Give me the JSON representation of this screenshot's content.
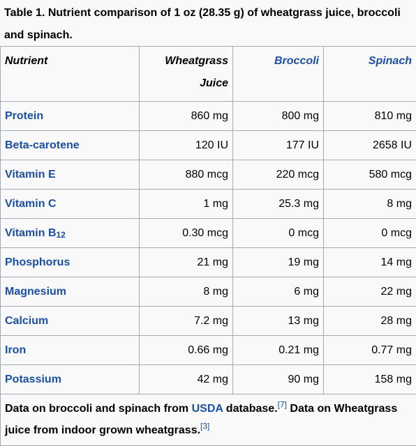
{
  "caption": "Table 1. Nutrient comparison of 1 oz (28.35 g) of wheatgrass juice, broccoli and spinach.",
  "headers": {
    "nutrient": "Nutrient",
    "wheatgrass": "Wheatgrass Juice",
    "broccoli": "Broccoli",
    "spinach": "Spinach"
  },
  "rows": [
    {
      "name": "Protein",
      "sub": "",
      "wheatgrass": "860 mg",
      "broccoli": "800 mg",
      "spinach": "810 mg"
    },
    {
      "name": "Beta-carotene",
      "sub": "",
      "wheatgrass": "120 IU",
      "broccoli": "177 IU",
      "spinach": "2658 IU"
    },
    {
      "name": "Vitamin E",
      "sub": "",
      "wheatgrass": "880 mcg",
      "broccoli": "220 mcg",
      "spinach": "580 mcg"
    },
    {
      "name": "Vitamin C",
      "sub": "",
      "wheatgrass": "1 mg",
      "broccoli": "25.3 mg",
      "spinach": "8 mg"
    },
    {
      "name": "Vitamin B",
      "sub": "12",
      "wheatgrass": "0.30 mcg",
      "broccoli": "0 mcg",
      "spinach": "0 mcg"
    },
    {
      "name": "Phosphorus",
      "sub": "",
      "wheatgrass": "21 mg",
      "broccoli": "19 mg",
      "spinach": "14 mg"
    },
    {
      "name": "Magnesium",
      "sub": "",
      "wheatgrass": "8 mg",
      "broccoli": "6 mg",
      "spinach": "22 mg"
    },
    {
      "name": "Calcium",
      "sub": "",
      "wheatgrass": "7.2 mg",
      "broccoli": "13 mg",
      "spinach": "28 mg"
    },
    {
      "name": "Iron",
      "sub": "",
      "wheatgrass": "0.66 mg",
      "broccoli": "0.21 mg",
      "spinach": "0.77 mg"
    },
    {
      "name": "Potassium",
      "sub": "",
      "wheatgrass": "42 mg",
      "broccoli": "90 mg",
      "spinach": "158 mg"
    }
  ],
  "footnote": {
    "part1": "Data on broccoli and spinach from ",
    "usda_link": "USDA",
    "part2": " database.",
    "ref1": "[7]",
    "part3": " Data on Wheatgrass juice from indoor grown wheatgrass.",
    "ref2": "[3]"
  }
}
